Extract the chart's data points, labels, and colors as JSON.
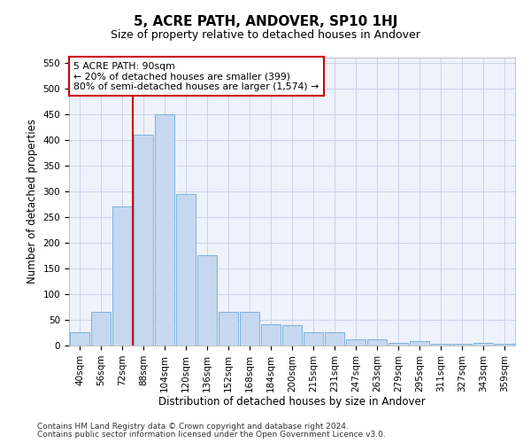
{
  "title": "5, ACRE PATH, ANDOVER, SP10 1HJ",
  "subtitle": "Size of property relative to detached houses in Andover",
  "xlabel": "Distribution of detached houses by size in Andover",
  "ylabel": "Number of detached properties",
  "footnote1": "Contains HM Land Registry data © Crown copyright and database right 2024.",
  "footnote2": "Contains public sector information licensed under the Open Government Licence v3.0.",
  "categories": [
    "40sqm",
    "56sqm",
    "72sqm",
    "88sqm",
    "104sqm",
    "120sqm",
    "136sqm",
    "152sqm",
    "168sqm",
    "184sqm",
    "200sqm",
    "215sqm",
    "231sqm",
    "247sqm",
    "263sqm",
    "279sqm",
    "295sqm",
    "311sqm",
    "327sqm",
    "343sqm",
    "359sqm"
  ],
  "values": [
    25,
    65,
    270,
    410,
    450,
    295,
    175,
    65,
    65,
    42,
    40,
    25,
    25,
    12,
    12,
    5,
    8,
    4,
    4,
    5,
    4
  ],
  "bar_color": "#c5d8f0",
  "bar_edge_color": "#6aaad4",
  "bg_color": "#eef2fb",
  "grid_color": "#c8d4ea",
  "vline_x_index": 3,
  "vline_color": "#cc0000",
  "annotation_text": "5 ACRE PATH: 90sqm\n← 20% of detached houses are smaller (399)\n80% of semi-detached houses are larger (1,574) →",
  "annotation_box_color": "#ffffff",
  "annotation_box_edge": "#cc0000",
  "ylim": [
    0,
    560
  ],
  "yticks": [
    0,
    50,
    100,
    150,
    200,
    250,
    300,
    350,
    400,
    450,
    500,
    550
  ],
  "title_fontsize": 11,
  "subtitle_fontsize": 9,
  "ylabel_fontsize": 8.5,
  "xlabel_fontsize": 8.5,
  "tick_fontsize": 7.5,
  "footnote_fontsize": 6.5
}
